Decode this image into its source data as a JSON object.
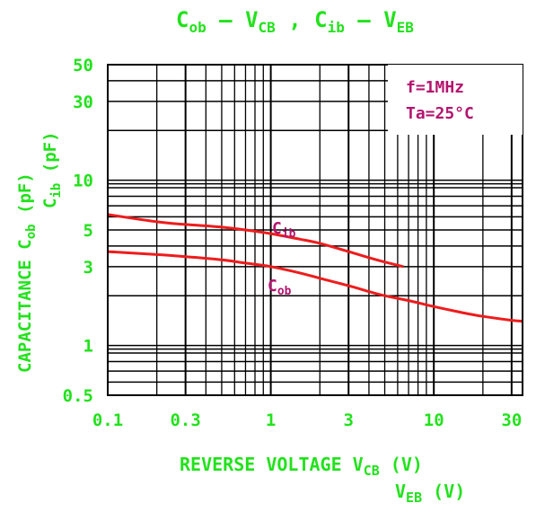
{
  "colors": {
    "axis_text": "#22e21c",
    "curve": "#ee1c1c",
    "annotation": "#b4146e",
    "grid": "#000000"
  },
  "chart_data": {
    "type": "line",
    "title": {
      "a": "C",
      "a_sub": "ob",
      "b": " – V",
      "b_sub": "CB",
      "c": " ,  C",
      "c_sub": "ib",
      "d": " – V",
      "d_sub": "EB"
    },
    "xscale": "log",
    "yscale": "log",
    "xlim": [
      0.1,
      35
    ],
    "ylim": [
      0.5,
      50
    ],
    "xticks": [
      0.1,
      0.3,
      1,
      3,
      10,
      30
    ],
    "xtick_labels": [
      "0.1",
      "0.3",
      "1",
      "3",
      "10",
      "30"
    ],
    "yticks": [
      0.5,
      1,
      3,
      5,
      10,
      30,
      50
    ],
    "ytick_labels": [
      "0.5",
      "1",
      "3",
      "5",
      "10",
      "30",
      "50"
    ],
    "grid": true,
    "xlabel": {
      "line1": "REVERSE VOLTAGE V",
      "line1_sub": "CB",
      "line1_unit": " (V)",
      "line2": "V",
      "line2_sub": "EB",
      "line2_unit": " (V)"
    },
    "ylabel": {
      "text": "CAPACITANCE ",
      "cob": "C",
      "cob_sub": "ob",
      "cob_unit": "  (pF)",
      "cib": "C",
      "cib_sub": "ib",
      "cib_unit": "  (pF)"
    },
    "conditions": [
      "f=1MHz",
      "Ta=25°C"
    ],
    "series": [
      {
        "name": "Cib",
        "label": "C",
        "label_sub": "ib",
        "x": [
          0.1,
          0.2,
          0.3,
          0.5,
          0.7,
          1.0,
          1.5,
          2.0,
          3.0,
          4.0,
          5.0,
          6.5
        ],
        "y": [
          6.2,
          5.6,
          5.4,
          5.2,
          5.0,
          4.75,
          4.4,
          4.15,
          3.7,
          3.4,
          3.2,
          3.0
        ]
      },
      {
        "name": "Cob",
        "label": "C",
        "label_sub": "ob",
        "x": [
          0.1,
          0.2,
          0.3,
          0.5,
          0.7,
          1.0,
          1.5,
          2.0,
          3.0,
          4.0,
          5.0,
          7.0,
          10.0,
          15.0,
          20.0,
          30.0,
          35.0
        ],
        "y": [
          3.7,
          3.55,
          3.45,
          3.3,
          3.15,
          3.0,
          2.75,
          2.55,
          2.3,
          2.12,
          2.0,
          1.87,
          1.72,
          1.58,
          1.5,
          1.42,
          1.4
        ]
      }
    ]
  }
}
